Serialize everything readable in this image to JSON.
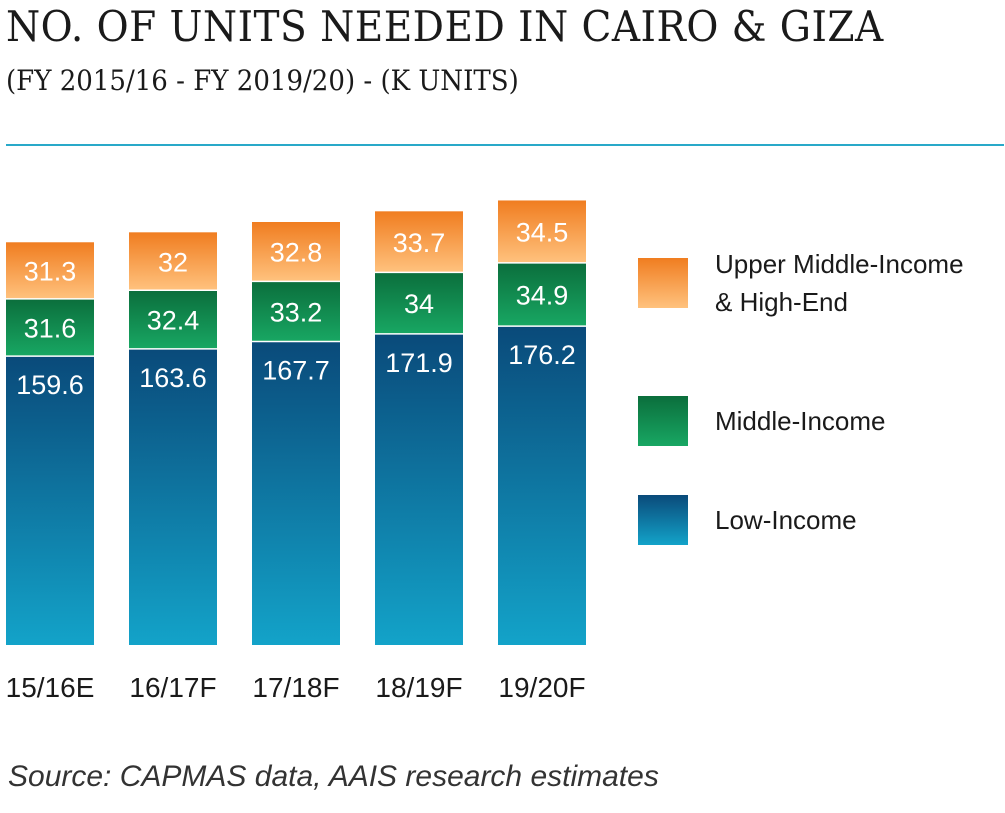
{
  "header": {
    "title": "NO. OF UNITS NEEDED IN CAIRO & GIZA",
    "subtitle": "(FY 2015/16 - FY 2019/20) - (K UNITS)"
  },
  "colors": {
    "low_income_top": "#0a4a7a",
    "low_income_bottom": "#13a3c9",
    "middle_income_top": "#0b6e3c",
    "middle_income_bottom": "#18a763",
    "upper_top": "#f07d20",
    "upper_bottom": "#ffc27e",
    "rule": "#29a9c9"
  },
  "chart_data": {
    "type": "bar",
    "stacked": true,
    "categories": [
      "15/16E",
      "16/17F",
      "17/18F",
      "18/19F",
      "19/20F"
    ],
    "series": [
      {
        "name": "Low-Income",
        "values": [
          159.6,
          163.6,
          167.7,
          171.9,
          176.2
        ]
      },
      {
        "name": "Middle-Income",
        "values": [
          31.6,
          32.4,
          33.2,
          34,
          34.9
        ]
      },
      {
        "name": "Upper Middle-Income & High-End",
        "values": [
          31.3,
          32,
          32.8,
          33.7,
          34.5
        ]
      }
    ],
    "value_labels": [
      [
        "159.6",
        "163.6",
        "167.7",
        "171.9",
        "176.2"
      ],
      [
        "31.6",
        "32.4",
        "33.2",
        "34",
        "34.9"
      ],
      [
        "31.3",
        "32",
        "32.8",
        "33.7",
        "34.5"
      ]
    ],
    "legend": {
      "placement": "right",
      "entries": [
        {
          "line1": "Upper Middle-Income",
          "line2": "& High-End"
        },
        {
          "line1": "Middle-Income",
          "line2": ""
        },
        {
          "line1": "Low-Income",
          "line2": ""
        }
      ]
    },
    "grid": false,
    "yaxis_visible": false
  },
  "footer": {
    "source": "Source: CAPMAS data, AAIS research estimates"
  }
}
